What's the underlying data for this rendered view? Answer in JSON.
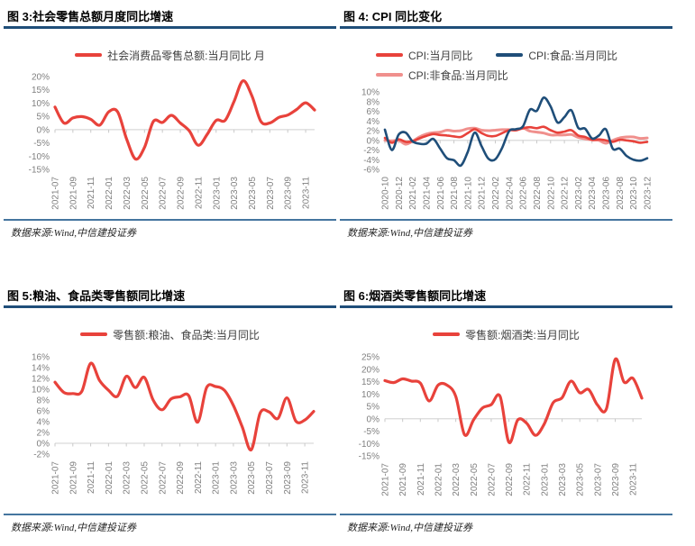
{
  "page": {
    "background": "#FFFFFF",
    "title_rule_color": "#1F4E79",
    "source_rule_color": "#45759F",
    "axis_label_color": "#7F7F7F",
    "gridline_color": "#D9D9D9"
  },
  "chart_data": [
    {
      "id": "fig3",
      "type": "line",
      "title": "图 3:社会零售总额月度同比增速",
      "source": "数据来源:Wind,中信建投证券",
      "grid": "zero-line-only",
      "legend_position": "top-center",
      "y_tick_suffix": "%",
      "y_ticks": [
        20,
        15,
        10,
        5,
        0,
        -5,
        -10,
        -15
      ],
      "ylim": [
        -15,
        20
      ],
      "months_per_label": 2,
      "x_labels": [
        "2021-07",
        "2021-09",
        "2021-11",
        "2022-01",
        "2022-03",
        "2022-05",
        "2022-07",
        "2022-09",
        "2022-11",
        "2023-01",
        "2023-03",
        "2023-05",
        "2023-07",
        "2023-09",
        "2023-11"
      ],
      "series": [
        {
          "name": "社会消费品零售总额:当月同比 月",
          "color": "#E8423B",
          "width": 3.2,
          "values": [
            8.5,
            2.5,
            4.4,
            4.9,
            3.9,
            1.7,
            6.7,
            6.7,
            -3.5,
            -11.1,
            -6.7,
            3.1,
            2.7,
            5.4,
            2.5,
            -0.5,
            -5.9,
            -1.8,
            3.5,
            3.5,
            10.6,
            18.4,
            12.7,
            3.1,
            2.5,
            4.6,
            5.5,
            7.6,
            10.1,
            7.4
          ]
        }
      ]
    },
    {
      "id": "fig4",
      "type": "line",
      "title": "图 4: CPI 同比变化",
      "source": "数据来源:Wind,中信建投证券",
      "grid": "zero-line-only",
      "legend_position": "top-left-two-rows",
      "legend_rows": [
        [
          0,
          1
        ],
        [
          2
        ]
      ],
      "draw_order": [
        2,
        0,
        1
      ],
      "y_tick_suffix": "%",
      "y_ticks": [
        10,
        8,
        6,
        4,
        2,
        0,
        -2,
        -4,
        -6
      ],
      "ylim": [
        -6,
        10
      ],
      "months_per_label": 2,
      "x_labels": [
        "2020-10",
        "2020-12",
        "2021-02",
        "2021-04",
        "2021-06",
        "2021-08",
        "2021-10",
        "2021-12",
        "2022-02",
        "2022-04",
        "2022-06",
        "2022-08",
        "2022-10",
        "2022-12",
        "2023-02",
        "2023-04",
        "2023-06",
        "2023-08",
        "2023-10",
        "2023-12"
      ],
      "series": [
        {
          "name": "CPI:当月同比",
          "color": "#E8423B",
          "width": 2.6,
          "values": [
            0.5,
            -0.5,
            0.2,
            -0.3,
            -0.2,
            0.4,
            0.9,
            1.3,
            1.1,
            1.0,
            0.8,
            0.7,
            1.5,
            2.3,
            1.5,
            0.9,
            0.9,
            1.5,
            2.1,
            2.1,
            2.5,
            2.7,
            2.5,
            2.8,
            2.1,
            1.6,
            1.8,
            2.1,
            1.0,
            0.7,
            0.1,
            0.2,
            0.0,
            -0.3,
            0.1,
            0.0,
            -0.2,
            -0.5,
            -0.3
          ]
        },
        {
          "name": "CPI:食品:当月同比",
          "color": "#1F4E79",
          "width": 2.6,
          "values": [
            2.2,
            -2.0,
            1.2,
            1.6,
            -0.2,
            -0.7,
            -0.7,
            0.3,
            -1.7,
            -3.7,
            -4.1,
            -5.2,
            -2.4,
            1.6,
            -1.2,
            -3.8,
            -3.9,
            -1.5,
            1.9,
            2.3,
            2.9,
            6.3,
            6.1,
            8.8,
            7.0,
            3.7,
            4.8,
            6.2,
            2.6,
            2.4,
            0.4,
            1.0,
            2.3,
            -1.7,
            -1.7,
            -3.2,
            -4.0,
            -4.2,
            -3.7
          ]
        },
        {
          "name": "CPI:非食品:当月同比",
          "color": "#F0908D",
          "width": 3.0,
          "values": [
            0.0,
            -0.1,
            0.0,
            -0.8,
            -0.2,
            0.7,
            1.3,
            1.6,
            1.7,
            2.1,
            1.9,
            2.0,
            2.4,
            2.5,
            2.1,
            2.0,
            2.1,
            2.2,
            2.2,
            2.1,
            2.5,
            1.9,
            1.7,
            1.5,
            1.1,
            1.1,
            1.1,
            1.2,
            0.6,
            0.3,
            0.1,
            0.0,
            -0.6,
            0.0,
            0.5,
            0.7,
            0.7,
            0.4,
            0.5
          ]
        }
      ]
    },
    {
      "id": "fig5",
      "type": "line",
      "title": "图 5:粮油、食品类零售额同比增速",
      "source": "数据来源:Wind,中信建投证券",
      "grid": "zero-line-only",
      "legend_position": "top-center",
      "y_tick_suffix": "%",
      "y_ticks": [
        16,
        14,
        12,
        10,
        8,
        6,
        4,
        2,
        0,
        -2
      ],
      "ylim": [
        -2,
        16
      ],
      "months_per_label": 2,
      "x_labels": [
        "2021-07",
        "2021-09",
        "2021-11",
        "2022-01",
        "2022-03",
        "2022-05",
        "2022-07",
        "2022-09",
        "2022-11",
        "2023-01",
        "2023-03",
        "2023-05",
        "2023-07",
        "2023-09",
        "2023-11"
      ],
      "series": [
        {
          "name": "零售额:粮油、食品类:当月同比",
          "color": "#E8423B",
          "width": 3.2,
          "values": [
            11.3,
            9.4,
            9.2,
            9.6,
            14.8,
            11.6,
            9.8,
            8.7,
            12.4,
            10.3,
            12.2,
            8.0,
            6.2,
            8.2,
            8.6,
            8.8,
            3.9,
            10.3,
            10.5,
            9.8,
            7.0,
            3.0,
            -1.2,
            5.6,
            5.8,
            4.6,
            8.4,
            4.1,
            4.3,
            5.9
          ]
        }
      ]
    },
    {
      "id": "fig6",
      "type": "line",
      "title": "图 6:烟酒类零售额同比增速",
      "source": "数据来源:Wind,中信建投证券",
      "grid": "zero-line-only",
      "legend_position": "top-center",
      "y_tick_suffix": "%",
      "y_ticks": [
        25,
        20,
        15,
        10,
        5,
        0,
        -5,
        -10,
        -15
      ],
      "ylim": [
        -15,
        25
      ],
      "months_per_label": 2,
      "x_labels": [
        "2021-07",
        "2021-09",
        "2021-11",
        "2022-01",
        "2022-03",
        "2022-05",
        "2022-07",
        "2022-09",
        "2022-11",
        "2023-01",
        "2023-03",
        "2023-05",
        "2023-07",
        "2023-09",
        "2023-11"
      ],
      "series": [
        {
          "name": "零售额:烟酒类:当月同比",
          "color": "#E8423B",
          "width": 3.2,
          "values": [
            15.4,
            14.6,
            16.1,
            15.2,
            14.4,
            7.2,
            13.6,
            13.6,
            9.0,
            -6.5,
            -0.5,
            4.3,
            5.7,
            9.0,
            -9.5,
            -0.5,
            -1.8,
            -6.7,
            -2.0,
            6.5,
            8.5,
            15.2,
            10.5,
            11.8,
            5.5,
            4.0,
            24.0,
            14.8,
            16.3,
            8.3
          ]
        }
      ]
    }
  ]
}
